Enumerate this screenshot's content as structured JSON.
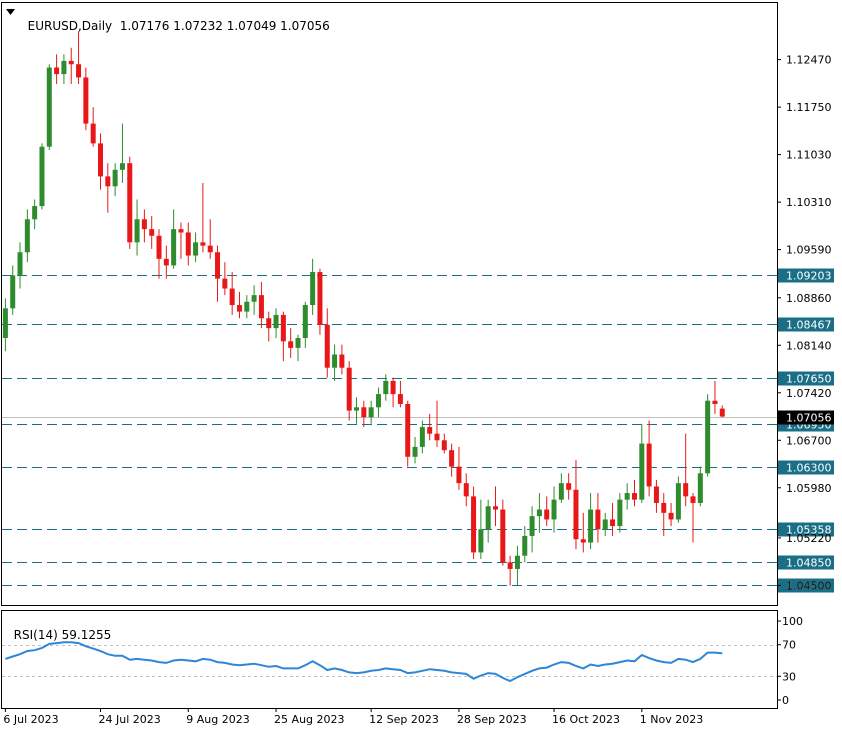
{
  "header": {
    "symbol": "EURUSD,Daily",
    "open": "1.07176",
    "high": "1.07232",
    "low": "1.07049",
    "close": "1.07056"
  },
  "rsi_header": {
    "label": "RSI(14)",
    "value": "59.1255"
  },
  "colors": {
    "bull": "#2e8b2e",
    "bear": "#e81818",
    "level_line": "#1a6f86",
    "grid": "#c0c0c0",
    "rsi_line": "#2e86d6"
  },
  "chart_data": [
    {
      "type": "candlestick",
      "title": "EURUSD,Daily",
      "y_ticks": [
        "1.12470",
        "1.11750",
        "1.11030",
        "1.10310",
        "1.09590",
        "1.08860",
        "1.08140",
        "1.07420",
        "1.06700",
        "1.05980",
        "1.05220",
        "1.04500"
      ],
      "x_ticks": [
        "6 Jul 2023",
        "24 Jul 2023",
        "9 Aug 2023",
        "25 Aug 2023",
        "12 Sep 2023",
        "28 Sep 2023",
        "16 Oct 2023",
        "1 Nov 2023"
      ],
      "ylim": [
        1.0437,
        1.1304
      ],
      "levels": [
        "1.09203",
        "1.08467",
        "1.07650",
        "1.06950",
        "1.06300",
        "1.05358",
        "1.04850",
        "1.04500"
      ],
      "current_price": "1.07056",
      "candles": [
        [
          1.0825,
          1.0885,
          1.0805,
          1.087
        ],
        [
          1.087,
          1.0935,
          1.086,
          1.092
        ],
        [
          1.092,
          1.097,
          1.09,
          1.0955
        ],
        [
          1.0955,
          1.102,
          1.094,
          1.1005
        ],
        [
          1.1005,
          1.1035,
          1.099,
          1.1025
        ],
        [
          1.1025,
          1.112,
          1.102,
          1.1115
        ],
        [
          1.1115,
          1.124,
          1.111,
          1.1235
        ],
        [
          1.1235,
          1.1255,
          1.121,
          1.1225
        ],
        [
          1.1225,
          1.1255,
          1.121,
          1.1245
        ],
        [
          1.1245,
          1.1265,
          1.121,
          1.124
        ],
        [
          1.124,
          1.129,
          1.121,
          1.122
        ],
        [
          1.122,
          1.1235,
          1.114,
          1.115
        ],
        [
          1.115,
          1.1175,
          1.1115,
          1.112
        ],
        [
          1.112,
          1.1135,
          1.105,
          1.107
        ],
        [
          1.107,
          1.109,
          1.1015,
          1.1055
        ],
        [
          1.1055,
          1.109,
          1.104,
          1.108
        ],
        [
          1.108,
          1.115,
          1.106,
          1.109
        ],
        [
          1.109,
          1.11,
          1.096,
          1.097
        ],
        [
          1.097,
          1.1035,
          1.095,
          1.1005
        ],
        [
          1.1005,
          1.102,
          1.097,
          1.099
        ],
        [
          1.099,
          1.101,
          1.096,
          1.098
        ],
        [
          1.098,
          1.099,
          1.0915,
          1.0945
        ],
        [
          1.0945,
          1.0965,
          1.0915,
          1.0935
        ],
        [
          1.0935,
          1.102,
          1.093,
          1.099
        ],
        [
          1.099,
          1.1,
          1.0945,
          1.0985
        ],
        [
          1.0985,
          1.1,
          1.0935,
          1.095
        ],
        [
          1.095,
          1.0985,
          1.094,
          1.097
        ],
        [
          1.097,
          1.106,
          1.0955,
          1.0965
        ],
        [
          1.0965,
          1.1005,
          1.0945,
          1.0955
        ],
        [
          1.0955,
          1.0965,
          1.088,
          1.0915
        ],
        [
          1.0915,
          1.094,
          1.089,
          1.09
        ],
        [
          1.09,
          1.0925,
          1.086,
          1.0875
        ],
        [
          1.0875,
          1.0895,
          1.0855,
          1.0865
        ],
        [
          1.0865,
          1.089,
          1.0855,
          1.088
        ],
        [
          1.088,
          1.0905,
          1.086,
          1.089
        ],
        [
          1.089,
          1.091,
          1.084,
          1.0855
        ],
        [
          1.0855,
          1.0865,
          1.082,
          1.084
        ],
        [
          1.084,
          1.087,
          1.0825,
          1.086
        ],
        [
          1.086,
          1.0865,
          1.079,
          1.082
        ],
        [
          1.082,
          1.084,
          1.0795,
          1.081
        ],
        [
          1.081,
          1.083,
          1.079,
          1.0825
        ],
        [
          1.0825,
          1.088,
          1.081,
          1.0875
        ],
        [
          1.0875,
          1.0945,
          1.086,
          1.0925
        ],
        [
          1.0925,
          1.093,
          1.083,
          1.0845
        ],
        [
          1.0845,
          1.087,
          1.0765,
          1.078
        ],
        [
          1.078,
          1.0815,
          1.076,
          1.08
        ],
        [
          1.08,
          1.0815,
          1.077,
          1.078
        ],
        [
          1.078,
          1.079,
          1.07,
          1.0715
        ],
        [
          1.0715,
          1.0735,
          1.0695,
          1.072
        ],
        [
          1.072,
          1.073,
          1.069,
          1.0705
        ],
        [
          1.0705,
          1.073,
          1.0695,
          1.072
        ],
        [
          1.072,
          1.075,
          1.0705,
          1.074
        ],
        [
          1.074,
          1.077,
          1.073,
          1.076
        ],
        [
          1.076,
          1.0765,
          1.072,
          1.074
        ],
        [
          1.074,
          1.076,
          1.072,
          1.0725
        ],
        [
          1.0725,
          1.073,
          1.063,
          1.0645
        ],
        [
          1.0645,
          1.0675,
          1.0635,
          1.066
        ],
        [
          1.066,
          1.07,
          1.065,
          1.069
        ],
        [
          1.069,
          1.071,
          1.067,
          1.068
        ],
        [
          1.068,
          1.073,
          1.066,
          1.067
        ],
        [
          1.067,
          1.068,
          1.065,
          1.0655
        ],
        [
          1.0655,
          1.0665,
          1.0615,
          1.063
        ],
        [
          1.063,
          1.066,
          1.0595,
          1.0605
        ],
        [
          1.0605,
          1.062,
          1.057,
          1.0585
        ],
        [
          1.0585,
          1.06,
          1.049,
          1.05
        ],
        [
          1.05,
          1.058,
          1.049,
          1.0535
        ],
        [
          1.0535,
          1.058,
          1.0515,
          1.057
        ],
        [
          1.057,
          1.06,
          1.054,
          1.0565
        ],
        [
          1.0565,
          1.058,
          1.048,
          1.0485
        ],
        [
          1.0485,
          1.0495,
          1.045,
          1.0475
        ],
        [
          1.0475,
          1.051,
          1.045,
          1.0495
        ],
        [
          1.0495,
          1.054,
          1.0485,
          1.0525
        ],
        [
          1.0525,
          1.057,
          1.05,
          1.0555
        ],
        [
          1.0555,
          1.059,
          1.053,
          1.0565
        ],
        [
          1.0565,
          1.0585,
          1.054,
          1.055
        ],
        [
          1.055,
          1.06,
          1.053,
          1.058
        ],
        [
          1.058,
          1.062,
          1.0575,
          1.0605
        ],
        [
          1.0605,
          1.062,
          1.058,
          1.0595
        ],
        [
          1.0595,
          1.064,
          1.0505,
          1.052
        ],
        [
          1.052,
          1.056,
          1.05,
          1.0515
        ],
        [
          1.0515,
          1.059,
          1.0505,
          1.0565
        ],
        [
          1.0565,
          1.059,
          1.0515,
          1.0535
        ],
        [
          1.0535,
          1.056,
          1.0525,
          1.055
        ],
        [
          1.055,
          1.0575,
          1.0525,
          1.054
        ],
        [
          1.054,
          1.059,
          1.053,
          1.058
        ],
        [
          1.058,
          1.0605,
          1.0565,
          1.059
        ],
        [
          1.059,
          1.061,
          1.057,
          1.058
        ],
        [
          1.058,
          1.0695,
          1.0575,
          1.0665
        ],
        [
          1.0665,
          1.07,
          1.0585,
          1.06
        ],
        [
          1.06,
          1.061,
          1.056,
          1.0575
        ],
        [
          1.0575,
          1.059,
          1.0525,
          1.056
        ],
        [
          1.056,
          1.0575,
          1.054,
          1.055
        ],
        [
          1.055,
          1.0615,
          1.0545,
          1.0605
        ],
        [
          1.0605,
          1.068,
          1.057,
          1.0585
        ],
        [
          1.0585,
          1.059,
          1.0515,
          1.0575
        ],
        [
          1.0575,
          1.063,
          1.057,
          1.062
        ],
        [
          1.062,
          1.074,
          1.0615,
          1.073
        ],
        [
          1.073,
          1.076,
          1.071,
          1.0725
        ],
        [
          1.0718,
          1.0723,
          1.0705,
          1.0706
        ]
      ]
    },
    {
      "type": "line",
      "title": "RSI(14) 59.1255",
      "y_ticks": [
        "100",
        "70",
        "30",
        "0"
      ],
      "ylim": [
        0,
        100
      ],
      "levels": [
        70,
        30
      ],
      "series": [
        {
          "name": "RSI(14)",
          "values": [
            52,
            55,
            58,
            62,
            63,
            66,
            71,
            72,
            73,
            73,
            72,
            68,
            65,
            62,
            58,
            56,
            56,
            51,
            52,
            51,
            50,
            48,
            47,
            50,
            51,
            50,
            49,
            52,
            51,
            48,
            47,
            45,
            44,
            45,
            46,
            44,
            42,
            43,
            40,
            40,
            40,
            44,
            49,
            44,
            38,
            40,
            38,
            35,
            34,
            35,
            37,
            38,
            40,
            39,
            38,
            34,
            35,
            37,
            39,
            38,
            37,
            35,
            34,
            33,
            27,
            31,
            34,
            33,
            28,
            24,
            29,
            33,
            37,
            40,
            41,
            45,
            48,
            47,
            43,
            40,
            45,
            43,
            45,
            46,
            48,
            50,
            49,
            57,
            53,
            50,
            48,
            47,
            52,
            51,
            48,
            52,
            60,
            60,
            59
          ]
        }
      ]
    }
  ]
}
